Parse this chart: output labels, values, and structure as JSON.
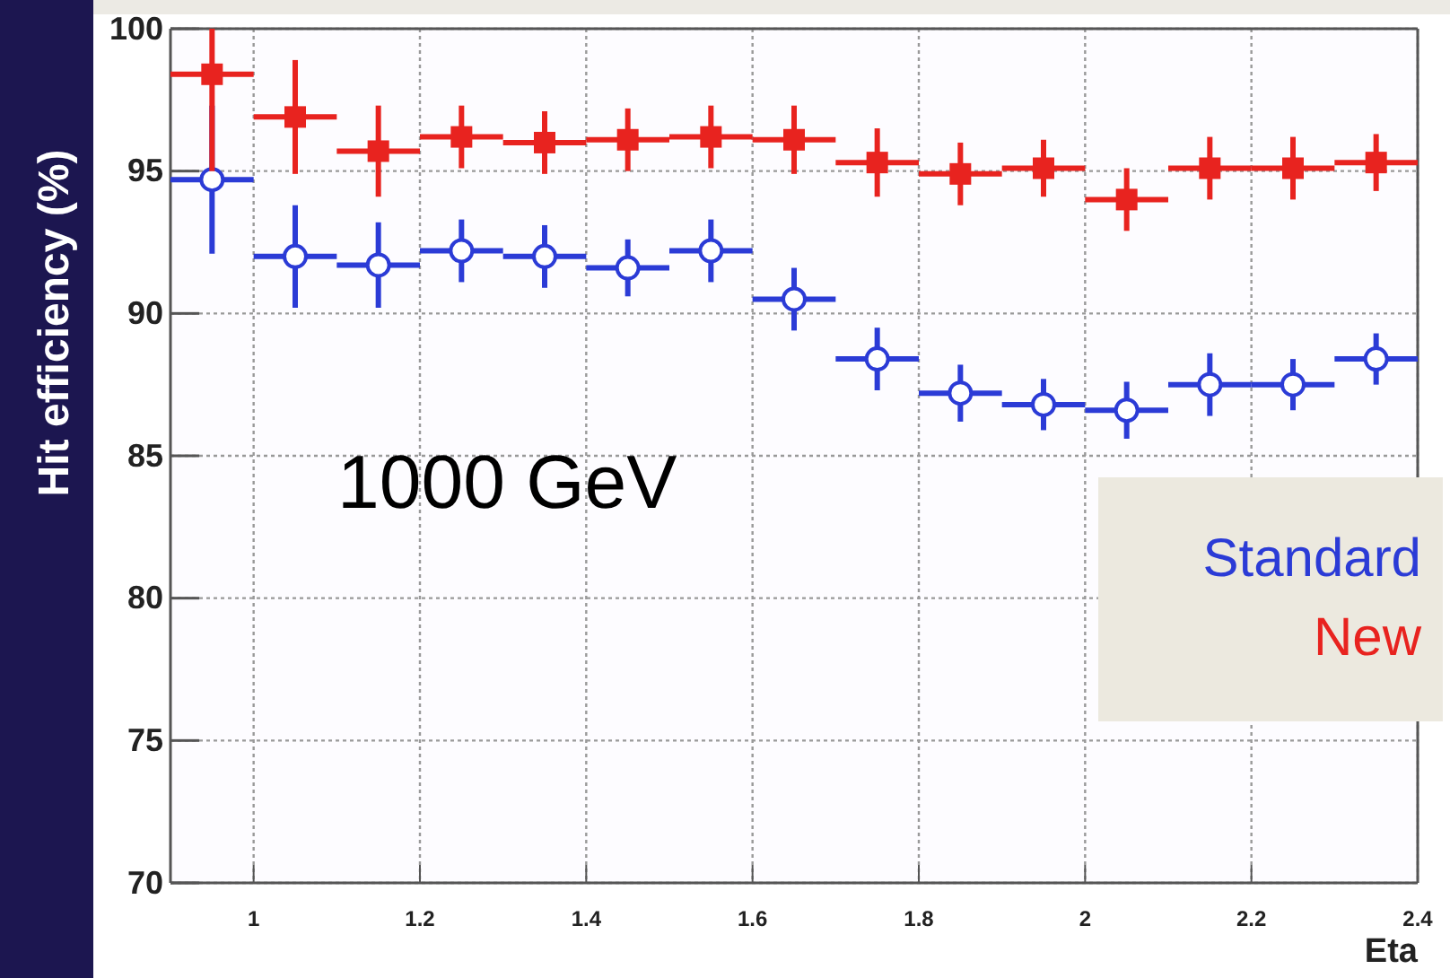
{
  "chart_data": {
    "type": "scatter",
    "xlabel": "Eta",
    "ylabel": "Hit efficiency (%)",
    "annotations": [
      "1000 GeV"
    ],
    "x": [
      0.95,
      1.05,
      1.15,
      1.25,
      1.35,
      1.45,
      1.55,
      1.65,
      1.75,
      1.85,
      1.95,
      2.05,
      2.15,
      2.25,
      2.35
    ],
    "series": [
      {
        "name": "Standard",
        "color": "#2b3bd6",
        "marker": "circle",
        "values": [
          94.7,
          92.0,
          91.7,
          92.2,
          92.0,
          91.6,
          92.2,
          90.5,
          88.4,
          87.2,
          86.8,
          86.6,
          87.5,
          87.5,
          88.4
        ],
        "errors": [
          2.6,
          1.8,
          1.5,
          1.1,
          1.1,
          1.0,
          1.1,
          1.1,
          1.1,
          1.0,
          0.9,
          1.0,
          1.1,
          0.9,
          0.9
        ],
        "xerrors": [
          0.05,
          0.05,
          0.05,
          0.05,
          0.05,
          0.05,
          0.05,
          0.05,
          0.05,
          0.05,
          0.05,
          0.05,
          0.05,
          0.05,
          0.05
        ]
      },
      {
        "name": "New",
        "color": "#e8231f",
        "marker": "square",
        "values": [
          98.4,
          96.9,
          95.7,
          96.2,
          96.0,
          96.1,
          96.2,
          96.1,
          95.3,
          94.9,
          95.1,
          94.0,
          95.1,
          95.1,
          95.3
        ],
        "errors": [
          [
            95.0,
            100
          ],
          2.0,
          1.6,
          1.1,
          1.1,
          1.1,
          1.1,
          1.2,
          1.2,
          1.1,
          1.0,
          1.1,
          1.1,
          1.1,
          1.0
        ],
        "xerrors": [
          0.05,
          0.05,
          0.05,
          0.05,
          0.05,
          0.05,
          0.05,
          0.05,
          0.05,
          0.05,
          0.05,
          0.05,
          0.05,
          0.05,
          0.05
        ]
      }
    ],
    "xlim": [
      0.9,
      2.4
    ],
    "xticks": [
      1,
      {
        "value": 1.2,
        "label": "1.2"
      },
      {
        "value": 1.4,
        "label": "1.4"
      },
      {
        "value": 1.6,
        "label": "1.6"
      },
      {
        "value": 1.8,
        "label": "1.8"
      },
      2,
      {
        "value": 2.2,
        "label": "2.2"
      },
      {
        "value": 2.4,
        "label": "2.4"
      }
    ],
    "ylim": [
      70,
      100
    ],
    "yticks": [
      70,
      75,
      80,
      85,
      90,
      95,
      100
    ],
    "grid": true,
    "legend": "right"
  }
}
